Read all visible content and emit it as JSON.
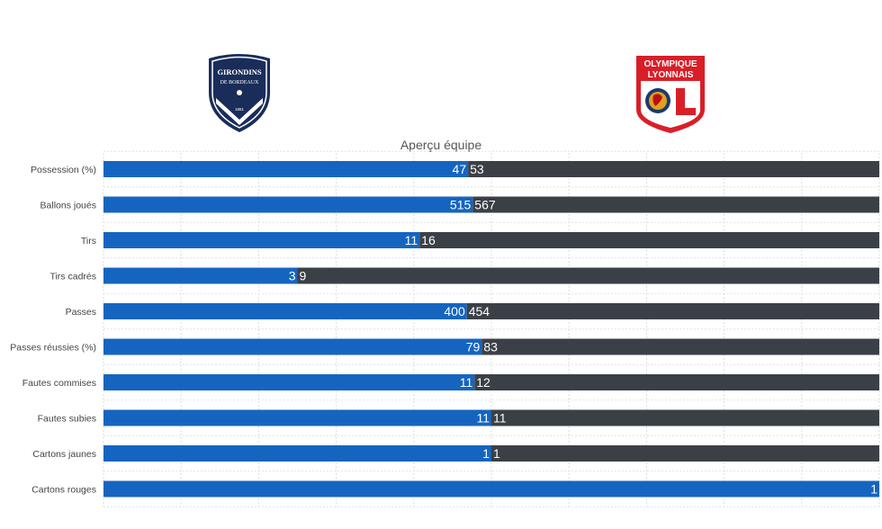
{
  "teams": {
    "home": {
      "name_line1": "GIRONDINS",
      "name_line2": "DE BORDEAUX",
      "year": "1881",
      "color": "#1565c0"
    },
    "away": {
      "name_line1": "OLYMPIQUE",
      "name_line2": "LYONNAIS",
      "color": "#3b4046"
    }
  },
  "chart_data": {
    "type": "bar",
    "stacked": "percent",
    "orientation": "horizontal",
    "title": "Aperçu équipe",
    "categories": [
      "Possession (%)",
      "Ballons joués",
      "Tirs",
      "Tirs cadrés",
      "Passes",
      "Passes réussies (%)",
      "Fautes commises",
      "Fautes subies",
      "Cartons jaunes",
      "Cartons rouges"
    ],
    "series": [
      {
        "color": "#1565c0",
        "values": [
          47,
          515,
          11,
          3,
          400,
          79,
          11,
          11,
          1,
          1
        ]
      },
      {
        "color": "#3b4046",
        "values": [
          53,
          567,
          16,
          9,
          454,
          83,
          12,
          11,
          1,
          0
        ]
      }
    ],
    "grid": true,
    "legend": "none"
  }
}
